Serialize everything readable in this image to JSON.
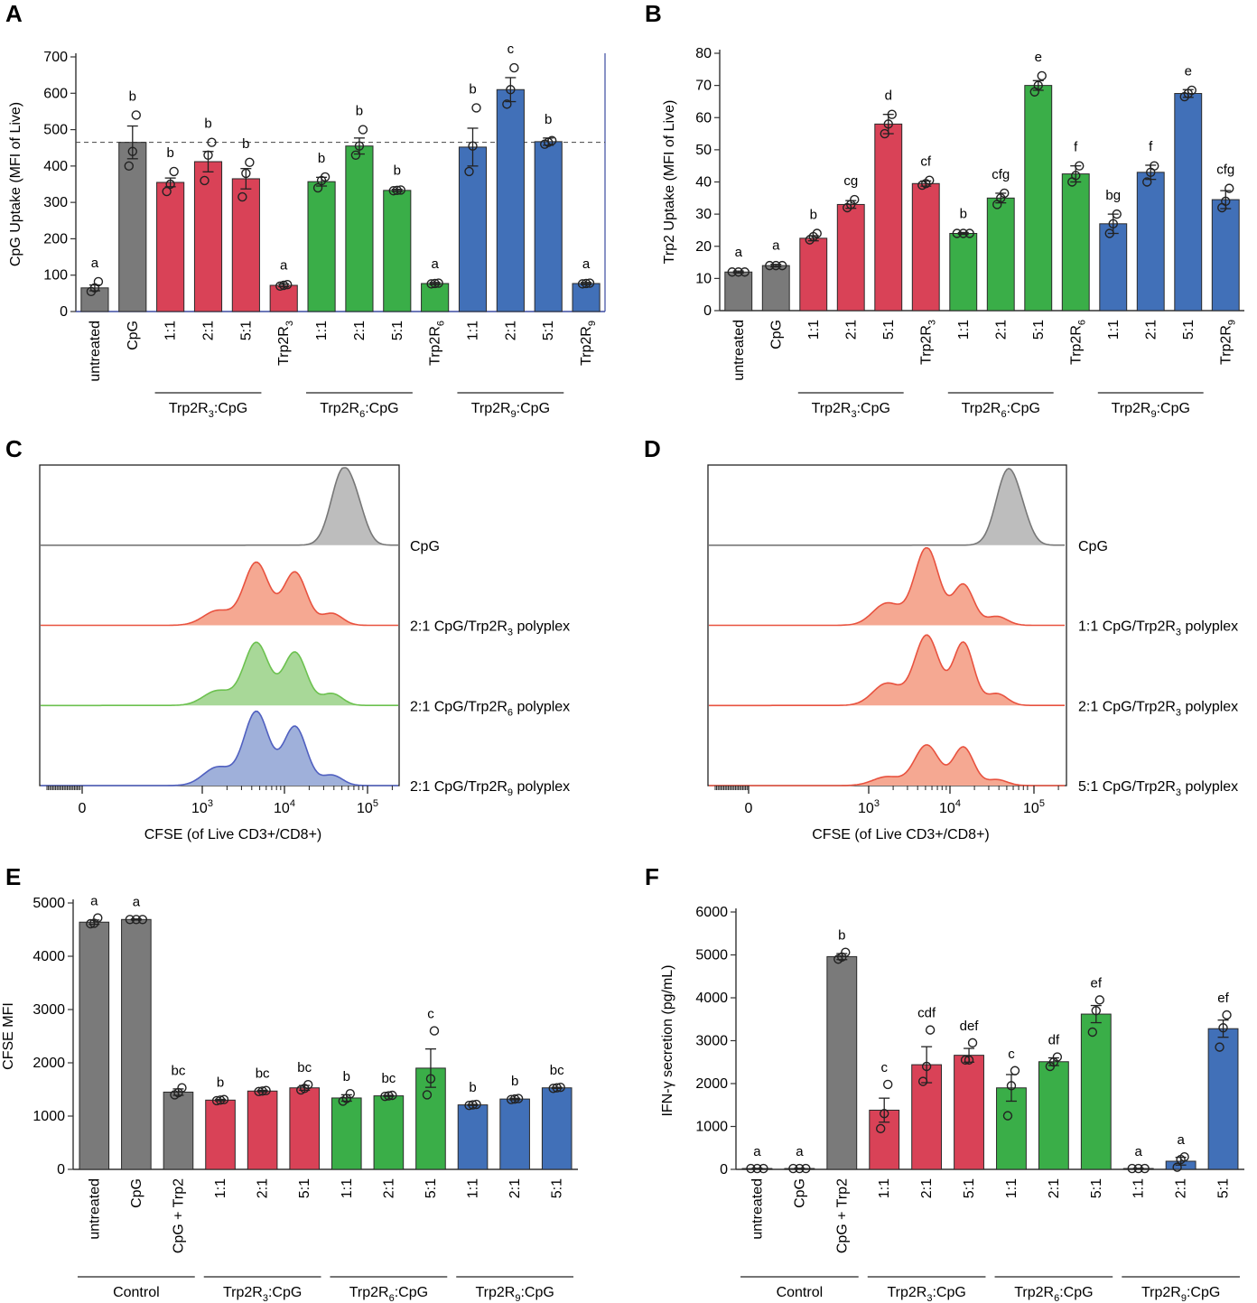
{
  "colors": {
    "gray": "#7a7a7a",
    "red": "#d94257",
    "green": "#3aae48",
    "blue": "#4170b8",
    "hist_gray": "#bdbdbd",
    "hist_red": "#f5a892",
    "hist_green": "#a8d898",
    "hist_blue": "#9fb0da",
    "line_red": "#e8523f",
    "line_green": "#6cc14f",
    "line_blue": "#5060c0",
    "axis_blue": "#3b4ba0"
  },
  "chart_data": [
    {
      "panel": "A",
      "type": "bar",
      "ylabel": "CpG Uptake (MFI of Live)",
      "ylim": [
        0,
        700
      ],
      "yticks": [
        0,
        100,
        200,
        300,
        400,
        500,
        600,
        700
      ],
      "reference_line": 465,
      "categories": [
        "untreated",
        "CpG",
        "1:1",
        "2:1",
        "5:1",
        "Trp2R3",
        "1:1",
        "2:1",
        "5:1",
        "Trp2R6",
        "1:1",
        "2:1",
        "5:1",
        "Trp2R9"
      ],
      "category_labels": [
        {
          "t": "untreated"
        },
        {
          "t": "CpG"
        },
        {
          "t": "1:1"
        },
        {
          "t": "2:1"
        },
        {
          "t": "5:1"
        },
        {
          "t": "Trp2R",
          "s": "3"
        },
        {
          "t": "1:1"
        },
        {
          "t": "2:1"
        },
        {
          "t": "5:1"
        },
        {
          "t": "Trp2R",
          "s": "6"
        },
        {
          "t": "1:1"
        },
        {
          "t": "2:1"
        },
        {
          "t": "5:1"
        },
        {
          "t": "Trp2R",
          "s": "9"
        }
      ],
      "values": [
        65,
        465,
        355,
        412,
        365,
        72,
        357,
        455,
        333,
        77,
        452,
        610,
        467,
        77
      ],
      "errors": [
        8,
        45,
        12,
        28,
        28,
        4,
        12,
        22,
        3,
        3,
        52,
        33,
        10,
        3
      ],
      "points": [
        [
          55,
          65,
          82
        ],
        [
          400,
          440,
          540
        ],
        [
          330,
          350,
          385
        ],
        [
          360,
          430,
          465
        ],
        [
          315,
          380,
          410
        ],
        [
          70,
          72,
          74
        ],
        [
          340,
          360,
          370
        ],
        [
          430,
          455,
          500
        ],
        [
          332,
          333,
          334
        ],
        [
          76,
          77,
          78
        ],
        [
          385,
          455,
          560
        ],
        [
          570,
          610,
          670
        ],
        [
          460,
          465,
          470
        ],
        [
          76,
          77,
          78
        ]
      ],
      "colors": [
        "gray",
        "gray",
        "red",
        "red",
        "red",
        "red",
        "green",
        "green",
        "green",
        "green",
        "blue",
        "blue",
        "blue",
        "blue"
      ],
      "significance": [
        "a",
        "b",
        "b",
        "b",
        "b",
        "a",
        "b",
        "b",
        "b",
        "a",
        "b",
        "c",
        "b",
        "a"
      ],
      "groups": [
        {
          "pre": "Trp2R",
          "sub": "3",
          "post": ":CpG",
          "from": 2,
          "to": 4
        },
        {
          "pre": "Trp2R",
          "sub": "6",
          "post": ":CpG",
          "from": 6,
          "to": 8
        },
        {
          "pre": "Trp2R",
          "sub": "9",
          "post": ":CpG",
          "from": 10,
          "to": 12
        }
      ]
    },
    {
      "panel": "B",
      "type": "bar",
      "ylabel": "Trp2 Uptake (MFI of Live)",
      "ylim": [
        0,
        80
      ],
      "yticks": [
        0,
        10,
        20,
        30,
        40,
        50,
        60,
        70,
        80
      ],
      "categories": [
        "untreated",
        "CpG",
        "1:1",
        "2:1",
        "5:1",
        "Trp2R3",
        "1:1",
        "2:1",
        "5:1",
        "Trp2R6",
        "1:1",
        "2:1",
        "5:1",
        "Trp2R9"
      ],
      "category_labels": [
        {
          "t": "untreated"
        },
        {
          "t": "CpG"
        },
        {
          "t": "1:1"
        },
        {
          "t": "2:1"
        },
        {
          "t": "5:1"
        },
        {
          "t": "Trp2R",
          "s": "3"
        },
        {
          "t": "1:1"
        },
        {
          "t": "2:1"
        },
        {
          "t": "5:1"
        },
        {
          "t": "Trp2R",
          "s": "6"
        },
        {
          "t": "1:1"
        },
        {
          "t": "2:1"
        },
        {
          "t": "5:1"
        },
        {
          "t": "Trp2R",
          "s": "9"
        }
      ],
      "values": [
        12,
        14,
        22.5,
        33,
        58,
        39.5,
        24,
        35,
        70,
        42.5,
        27,
        43,
        67.5,
        34.5
      ],
      "errors": [
        0.3,
        0.4,
        0.8,
        1.2,
        3,
        0.8,
        0.3,
        1.5,
        1.5,
        2.5,
        3,
        2.2,
        1.2,
        2.8
      ],
      "points": [
        [
          12,
          12,
          12
        ],
        [
          14,
          14,
          14
        ],
        [
          22,
          23,
          24
        ],
        [
          32,
          33,
          34.5
        ],
        [
          55,
          58,
          61
        ],
        [
          39,
          39.5,
          40.5
        ],
        [
          24,
          24,
          24
        ],
        [
          33,
          35,
          36.5
        ],
        [
          68,
          70,
          73
        ],
        [
          40,
          42,
          45
        ],
        [
          24,
          27,
          30
        ],
        [
          40,
          43,
          45
        ],
        [
          66.5,
          67.5,
          68.5
        ],
        [
          32,
          34,
          38
        ]
      ],
      "colors": [
        "gray",
        "gray",
        "red",
        "red",
        "red",
        "red",
        "green",
        "green",
        "green",
        "green",
        "blue",
        "blue",
        "blue",
        "blue"
      ],
      "significance": [
        "a",
        "a",
        "b",
        "cg",
        "d",
        "cf",
        "b",
        "cfg",
        "e",
        "f",
        "bg",
        "f",
        "e",
        "cfg"
      ],
      "groups": [
        {
          "pre": "Trp2R",
          "sub": "3",
          "post": ":CpG",
          "from": 2,
          "to": 4
        },
        {
          "pre": "Trp2R",
          "sub": "6",
          "post": ":CpG",
          "from": 6,
          "to": 8
        },
        {
          "pre": "Trp2R",
          "sub": "9",
          "post": ":CpG",
          "from": 10,
          "to": 12
        }
      ]
    },
    {
      "panel": "C",
      "type": "histogram",
      "xlabel": "CFSE (of Live CD3+/CD8+)",
      "xticks": [
        {
          "t": "0"
        },
        {
          "t": "10",
          "s": "3"
        },
        {
          "t": "10",
          "s": "4"
        },
        {
          "t": "10",
          "s": "5"
        }
      ],
      "tracks": [
        {
          "label": {
            "pre": "CpG",
            "sub": "",
            "post": ""
          },
          "fill": "hist_gray",
          "line": "#777777",
          "peaks": [
            [
              4.55,
              1.0,
              0.9
            ],
            [
              5.08,
              0.26,
              0.7
            ]
          ]
        },
        {
          "label": {
            "pre": "2:1 CpG/Trp2R",
            "sub": "3",
            "post": " polyplex"
          },
          "fill": "hist_red",
          "line": "line_red",
          "peaks": [
            [
              0.5,
              0.2,
              1.1
            ],
            [
              1.75,
              0.85,
              0.95
            ],
            [
              3.0,
              0.72,
              0.9
            ],
            [
              4.2,
              0.16,
              0.8
            ]
          ]
        },
        {
          "label": {
            "pre": "2:1 CpG/Trp2R",
            "sub": "6",
            "post": " polyplex"
          },
          "fill": "hist_green",
          "line": "line_green",
          "peaks": [
            [
              0.5,
              0.2,
              1.1
            ],
            [
              1.75,
              0.85,
              0.95
            ],
            [
              3.0,
              0.72,
              0.9
            ],
            [
              4.2,
              0.16,
              0.8
            ]
          ]
        },
        {
          "label": {
            "pre": "2:1 CpG/Trp2R",
            "sub": "9",
            "post": " polyplex"
          },
          "fill": "hist_blue",
          "line": "line_blue",
          "peaks": [
            [
              0.5,
              0.25,
              1.1
            ],
            [
              1.75,
              1.0,
              0.95
            ],
            [
              3.0,
              0.8,
              0.9
            ],
            [
              4.2,
              0.14,
              0.8
            ]
          ]
        }
      ]
    },
    {
      "panel": "D",
      "type": "histogram",
      "xlabel": "CFSE (of Live CD3+/CD8+)",
      "xticks": [
        {
          "t": "0"
        },
        {
          "t": "10",
          "s": "3"
        },
        {
          "t": "10",
          "s": "4"
        },
        {
          "t": "10",
          "s": "5"
        }
      ],
      "tracks": [
        {
          "label": {
            "pre": "CpG",
            "sub": "",
            "post": ""
          },
          "fill": "hist_gray",
          "line": "#777777",
          "peaks": [
            [
              4.55,
              1.0,
              0.9
            ],
            [
              5.08,
              0.18,
              0.7
            ]
          ]
        },
        {
          "label": {
            "pre": "1:1 CpG/Trp2R",
            "sub": "3",
            "post": " polyplex"
          },
          "fill": "hist_red",
          "line": "line_red",
          "peaks": [
            [
              0.6,
              0.3,
              1.1
            ],
            [
              1.9,
              1.05,
              0.95
            ],
            [
              3.1,
              0.55,
              0.8
            ],
            [
              4.2,
              0.12,
              0.8
            ]
          ]
        },
        {
          "label": {
            "pre": "2:1 CpG/Trp2R",
            "sub": "3",
            "post": " polyplex"
          },
          "fill": "hist_red",
          "line": "line_red",
          "peaks": [
            [
              0.6,
              0.3,
              1.1
            ],
            [
              1.9,
              0.95,
              0.95
            ],
            [
              3.1,
              0.85,
              0.8
            ],
            [
              4.2,
              0.16,
              0.8
            ]
          ]
        },
        {
          "label": {
            "pre": "5:1 CpG/Trp2R",
            "sub": "3",
            "post": " polyplex"
          },
          "fill": "hist_red",
          "line": "line_red",
          "peaks": [
            [
              0.6,
              0.12,
              1.1
            ],
            [
              1.9,
              0.55,
              0.95
            ],
            [
              3.1,
              0.52,
              0.8
            ],
            [
              4.2,
              0.08,
              0.8
            ]
          ]
        }
      ]
    },
    {
      "panel": "E",
      "type": "bar",
      "ylabel": "CFSE MFI",
      "ylim": [
        0,
        5000
      ],
      "yticks": [
        0,
        1000,
        2000,
        3000,
        4000,
        5000
      ],
      "categories": [
        "untreated",
        "CpG",
        "CpG + Trp2",
        "1:1",
        "2:1",
        "5:1",
        "1:1",
        "2:1",
        "5:1",
        "1:1",
        "2:1",
        "5:1"
      ],
      "category_labels": [
        {
          "t": "untreated"
        },
        {
          "t": "CpG"
        },
        {
          "t": "CpG + Trp2"
        },
        {
          "t": "1:1"
        },
        {
          "t": "2:1"
        },
        {
          "t": "5:1"
        },
        {
          "t": "1:1"
        },
        {
          "t": "2:1"
        },
        {
          "t": "5:1"
        },
        {
          "t": "1:1"
        },
        {
          "t": "2:1"
        },
        {
          "t": "5:1"
        }
      ],
      "values": [
        4640,
        4690,
        1450,
        1300,
        1470,
        1530,
        1340,
        1380,
        1900,
        1210,
        1320,
        1530
      ],
      "errors": [
        40,
        10,
        60,
        15,
        15,
        45,
        60,
        10,
        360,
        10,
        15,
        10
      ],
      "points": [
        [
          4610,
          4620,
          4720
        ],
        [
          4690,
          4690,
          4690
        ],
        [
          1400,
          1440,
          1530
        ],
        [
          1290,
          1300,
          1310
        ],
        [
          1460,
          1470,
          1480
        ],
        [
          1490,
          1520,
          1590
        ],
        [
          1280,
          1330,
          1420
        ],
        [
          1370,
          1380,
          1390
        ],
        [
          1400,
          1700,
          2600
        ],
        [
          1200,
          1210,
          1220
        ],
        [
          1310,
          1320,
          1330
        ],
        [
          1520,
          1530,
          1540
        ]
      ],
      "colors": [
        "gray",
        "gray",
        "gray",
        "red",
        "red",
        "red",
        "green",
        "green",
        "green",
        "blue",
        "blue",
        "blue"
      ],
      "significance": [
        "a",
        "a",
        "bc",
        "b",
        "bc",
        "bc",
        "b",
        "bc",
        "c",
        "b",
        "b",
        "bc"
      ],
      "groups": [
        {
          "pre": "Control",
          "sub": "",
          "post": "",
          "from": 0,
          "to": 2
        },
        {
          "pre": "Trp2R",
          "sub": "3",
          "post": ":CpG",
          "from": 3,
          "to": 5
        },
        {
          "pre": "Trp2R",
          "sub": "6",
          "post": ":CpG",
          "from": 6,
          "to": 8
        },
        {
          "pre": "Trp2R",
          "sub": "9",
          "post": ":CpG",
          "from": 9,
          "to": 11
        }
      ]
    },
    {
      "panel": "F",
      "type": "bar",
      "ylabel": "IFN-γ secretion (pg/mL)",
      "ylim": [
        0,
        6000
      ],
      "yticks": [
        0,
        1000,
        2000,
        3000,
        4000,
        5000,
        6000
      ],
      "categories": [
        "untreated",
        "CpG",
        "CpG + Trp2",
        "1:1",
        "2:1",
        "5:1",
        "1:1",
        "2:1",
        "5:1",
        "1:1",
        "2:1",
        "5:1"
      ],
      "category_labels": [
        {
          "t": "untreated"
        },
        {
          "t": "CpG"
        },
        {
          "t": "CpG + Trp2"
        },
        {
          "t": "1:1"
        },
        {
          "t": "2:1"
        },
        {
          "t": "5:1"
        },
        {
          "t": "1:1"
        },
        {
          "t": "2:1"
        },
        {
          "t": "5:1"
        },
        {
          "t": "1:1"
        },
        {
          "t": "2:1"
        },
        {
          "t": "5:1"
        }
      ],
      "values": [
        20,
        20,
        4960,
        1380,
        2440,
        2660,
        1900,
        2510,
        3620,
        20,
        190,
        3280
      ],
      "errors": [
        5,
        5,
        70,
        280,
        420,
        160,
        310,
        90,
        200,
        5,
        90,
        200
      ],
      "points": [
        [
          20,
          20,
          20
        ],
        [
          20,
          20,
          20
        ],
        [
          4900,
          4950,
          5060
        ],
        [
          950,
          1300,
          1980
        ],
        [
          2050,
          2400,
          3250
        ],
        [
          2550,
          2550,
          2950
        ],
        [
          1250,
          1950,
          2300
        ],
        [
          2400,
          2500,
          2620
        ],
        [
          3200,
          3700,
          3950
        ],
        [
          20,
          20,
          20
        ],
        [
          50,
          230,
          290
        ],
        [
          2850,
          3300,
          3600
        ]
      ],
      "colors": [
        "gray",
        "gray",
        "gray",
        "red",
        "red",
        "red",
        "green",
        "green",
        "green",
        "blue",
        "blue",
        "blue"
      ],
      "significance": [
        "a",
        "a",
        "b",
        "c",
        "cdf",
        "def",
        "c",
        "df",
        "ef",
        "a",
        "a",
        "ef"
      ],
      "groups": [
        {
          "pre": "Control",
          "sub": "",
          "post": "",
          "from": 0,
          "to": 2
        },
        {
          "pre": "Trp2R",
          "sub": "3",
          "post": ":CpG",
          "from": 3,
          "to": 5
        },
        {
          "pre": "Trp2R",
          "sub": "6",
          "post": ":CpG",
          "from": 6,
          "to": 8
        },
        {
          "pre": "Trp2R",
          "sub": "9",
          "post": ":CpG",
          "from": 9,
          "to": 11
        }
      ]
    }
  ]
}
